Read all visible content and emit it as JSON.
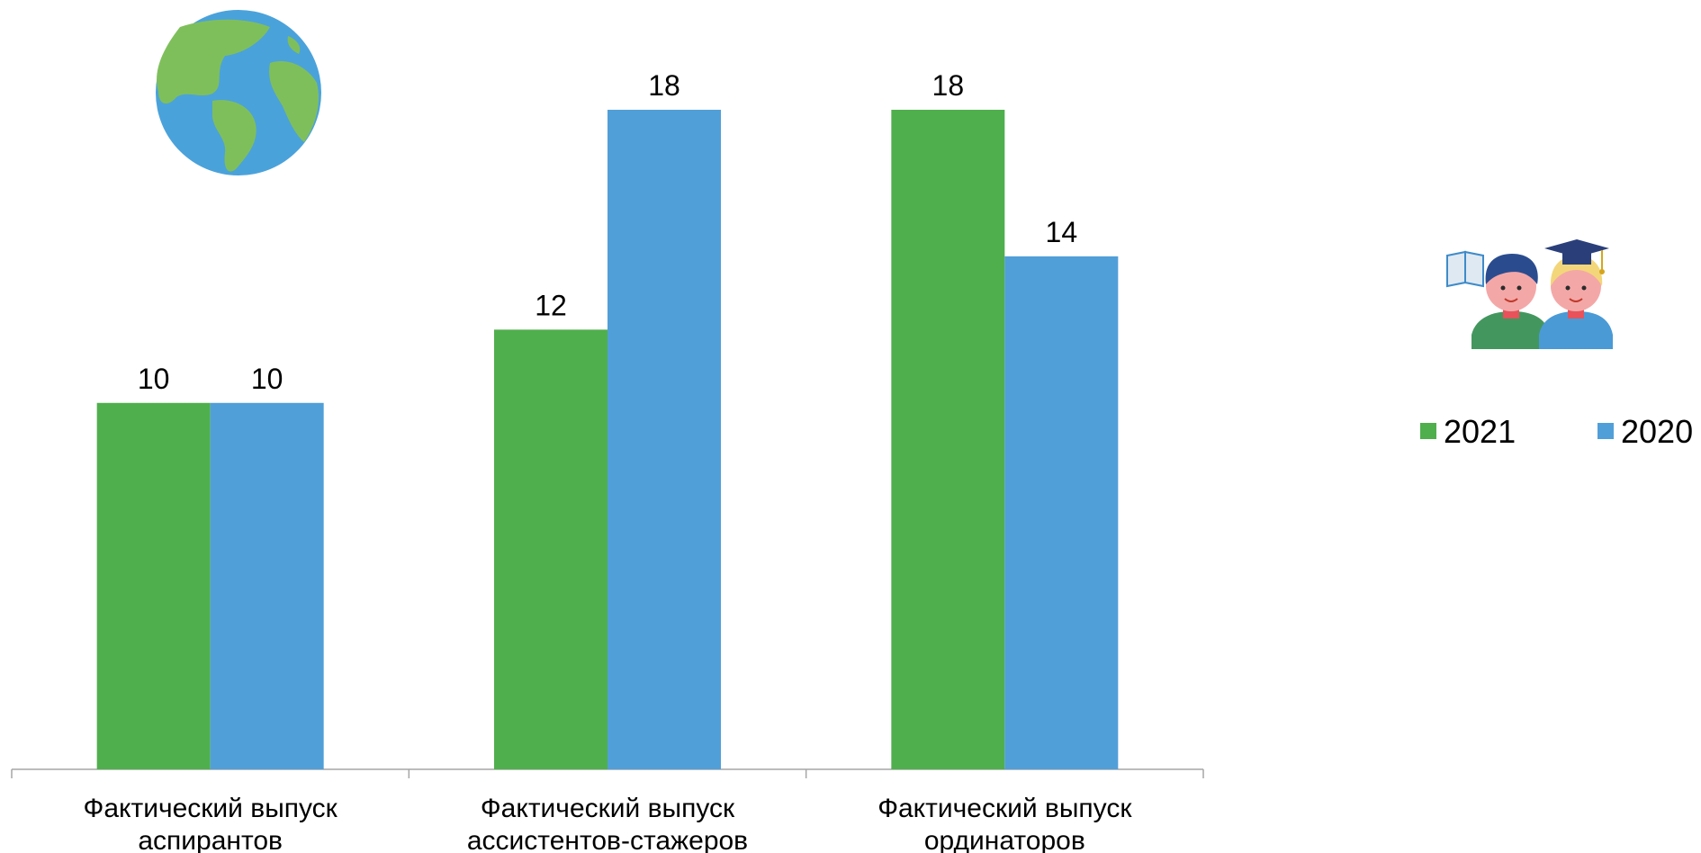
{
  "chart_data": {
    "type": "bar",
    "categories": [
      [
        "Фактический выпуск",
        "аспирантов"
      ],
      [
        "Фактический выпуск",
        "ассистентов-стажеров"
      ],
      [
        "Фактический выпуск",
        "ординаторов"
      ]
    ],
    "series": [
      {
        "name": "2021",
        "color": "#4faf4d",
        "values": [
          10,
          12,
          18
        ]
      },
      {
        "name": "2020",
        "color": "#519fd8",
        "values": [
          10,
          18,
          14
        ]
      }
    ],
    "ylim": [
      0,
      18
    ],
    "grid": false,
    "legend_position": "right",
    "data_labels": true
  },
  "icons": {
    "globe": "globe-icon",
    "students": "students-graduation-icon"
  }
}
